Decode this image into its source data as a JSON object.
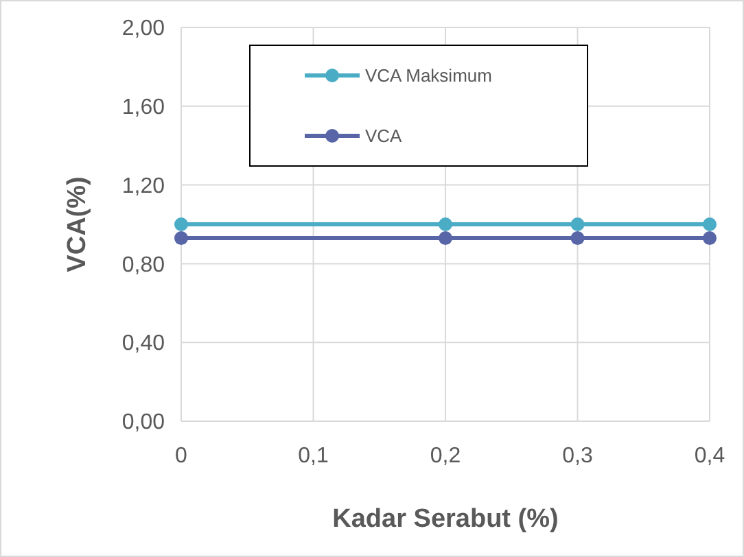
{
  "chart_data": {
    "type": "line",
    "xlabel": "Kadar Serabut (%)",
    "ylabel": "VCA(%)",
    "x": [
      0,
      0.2,
      0.3,
      0.4
    ],
    "series": [
      {
        "name": "VCA Maksimum",
        "color": "#4bacc6",
        "values": [
          1.0,
          1.0,
          1.0,
          1.0
        ]
      },
      {
        "name": "VCA",
        "color": "#5866a8",
        "values": [
          0.93,
          0.93,
          0.93,
          0.93
        ]
      }
    ],
    "xlim": [
      0,
      0.4
    ],
    "xticks": [
      0,
      {
        "value": 0.1,
        "label": "0,1"
      },
      {
        "value": 0.2,
        "label": "0,2"
      },
      {
        "value": 0.3,
        "label": "0,3"
      },
      {
        "value": 0.4,
        "label": "0,4"
      }
    ],
    "ylim": [
      0,
      2
    ],
    "yticks": [
      {
        "value": 0,
        "label": "0,00"
      },
      {
        "value": 0.4,
        "label": "0,40"
      },
      {
        "value": 0.8,
        "label": "0,80"
      },
      {
        "value": 1.2,
        "label": "1,20"
      },
      {
        "value": 1.6,
        "label": "1,60"
      },
      {
        "value": 2,
        "label": "2,00"
      }
    ],
    "grid": true,
    "legend": "top",
    "marker": "circle",
    "line_style": "solid"
  }
}
